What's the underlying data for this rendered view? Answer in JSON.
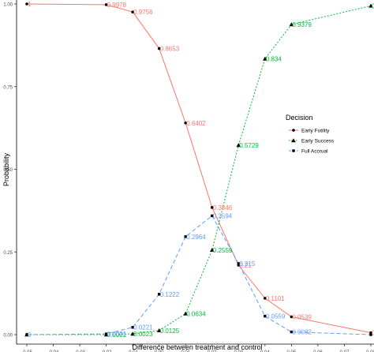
{
  "chart_data": {
    "type": "line",
    "xlabel": "Difference between treatment and control",
    "ylabel": "Probability",
    "xlim": [
      -0.05,
      0.08
    ],
    "ylim": [
      0,
      1
    ],
    "x_ticks": [
      "-0.05",
      "-0.04",
      "-0.03",
      "-0.02",
      "-0.01",
      "0.00",
      "0.01",
      "0.02",
      "0.03",
      "0.04",
      "0.05",
      "0.06",
      "0.07",
      "0.08"
    ],
    "y_ticks": [
      "0.00",
      "0.25",
      "0.50",
      "0.75",
      "1.00"
    ],
    "grid": false,
    "legend_position": "right",
    "legend_title": "Decision",
    "series": [
      {
        "name": "Early Futility",
        "color": "#f8766d",
        "marker": "circle",
        "line_style": "solid",
        "x": [
          -0.05,
          -0.02,
          -0.01,
          0.0,
          0.01,
          0.02,
          0.03,
          0.04,
          0.05,
          0.08
        ],
        "values": [
          1,
          0.9978,
          0.9756,
          0.8653,
          0.6402,
          0.3846,
          0.21,
          0.1101,
          0.0539,
          0.0058
        ],
        "labels": [
          "1",
          "0.9978",
          "0.9756",
          "0.8653",
          "0.6402",
          "0.3846",
          "0.21",
          "0.1101",
          "0.0539",
          "0.0058"
        ]
      },
      {
        "name": "Early Success",
        "color": "#00ba38",
        "marker": "triangle",
        "line_style": "dotted",
        "x": [
          -0.05,
          -0.02,
          -0.01,
          0.0,
          0.01,
          0.02,
          0.03,
          0.04,
          0.05,
          0.08
        ],
        "values": [
          0,
          0.0001,
          0.0023,
          0.0125,
          0.0634,
          0.2559,
          0.5729,
          0.834,
          0.9379,
          0.9942
        ],
        "labels": [
          "",
          "0.0001",
          "0.0023",
          "0.0125",
          "0.0634",
          "0.2559",
          "0.5729",
          "0.834",
          "0.9379",
          "0.9942"
        ]
      },
      {
        "name": "Full Accrual",
        "color": "#619cff",
        "marker": "square",
        "line_style": "dashed",
        "x": [
          -0.05,
          -0.02,
          -0.01,
          0.0,
          0.01,
          0.02,
          0.03,
          0.04,
          0.05,
          0.08
        ],
        "values": [
          0,
          0.0021,
          0.0221,
          0.1222,
          0.2964,
          0.3594,
          0.215,
          0.0559,
          0.0082,
          0.0
        ],
        "labels": [
          "0",
          "0.0021",
          "0.0221",
          "0.1222",
          "0.2964",
          "0.3594",
          "0.215",
          "0.0559",
          "0.0082",
          ""
        ]
      }
    ]
  }
}
